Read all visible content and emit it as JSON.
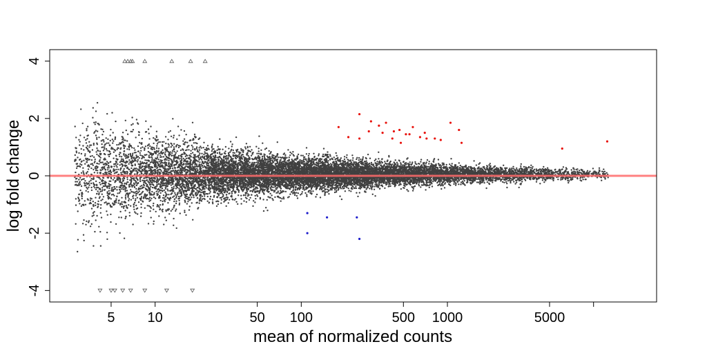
{
  "chart_data": {
    "type": "scatter",
    "title": "",
    "xlabel": "mean of normalized counts",
    "ylabel": "log fold change",
    "x_scale": "log",
    "x_ticks": [
      5,
      10,
      50,
      100,
      500,
      1000,
      5000
    ],
    "x_tick_labels": [
      "5",
      "10",
      "50",
      "100",
      "500",
      "1000",
      "5000"
    ],
    "y_ticks": [
      -4,
      -2,
      0,
      2,
      4
    ],
    "y_tick_labels": [
      "-4",
      "-2",
      "0",
      "2",
      "4"
    ],
    "xlim": [
      1.9,
      27000
    ],
    "ylim": [
      -4.4,
      4.4
    ],
    "grid": false,
    "reference_line": {
      "y": 0,
      "color": "#ff6b6b"
    },
    "colors": {
      "background_points": "#404040",
      "significant_up": "#e8120c",
      "significant_down": "#1c1ccc",
      "out_of_range": "#555555"
    },
    "series": [
      {
        "role": "significant_up",
        "points": [
          [
            250,
            2.15
          ],
          [
            300,
            1.9
          ],
          [
            340,
            1.75
          ],
          [
            380,
            1.85
          ],
          [
            430,
            1.55
          ],
          [
            470,
            1.6
          ],
          [
            520,
            1.45
          ],
          [
            580,
            1.7
          ],
          [
            650,
            1.35
          ],
          [
            720,
            1.3
          ],
          [
            820,
            1.3
          ],
          [
            1050,
            1.85
          ],
          [
            1200,
            1.6
          ],
          [
            1250,
            1.15
          ],
          [
            250,
            1.3
          ],
          [
            290,
            1.55
          ],
          [
            360,
            1.5
          ],
          [
            420,
            1.3
          ],
          [
            480,
            1.15
          ],
          [
            700,
            1.5
          ],
          [
            180,
            1.7
          ],
          [
            210,
            1.35
          ],
          [
            6100,
            0.95
          ],
          [
            12400,
            1.2
          ],
          [
            550,
            1.45
          ],
          [
            900,
            1.25
          ]
        ]
      },
      {
        "role": "significant_down",
        "points": [
          [
            110,
            -1.3
          ],
          [
            110,
            -2.0
          ],
          [
            150,
            -1.45
          ],
          [
            240,
            -1.45
          ],
          [
            250,
            -2.2
          ]
        ]
      },
      {
        "role": "out_of_range",
        "points": [
          [
            6.2,
            4
          ],
          [
            6.5,
            4
          ],
          [
            6.8,
            4
          ],
          [
            7.0,
            4
          ],
          [
            8.5,
            4
          ],
          [
            13,
            4
          ],
          [
            17.5,
            4
          ],
          [
            22,
            4
          ],
          [
            4.2,
            -4
          ],
          [
            5.0,
            -4
          ],
          [
            5.3,
            -4
          ],
          [
            6.0,
            -4
          ],
          [
            6.8,
            -4
          ],
          [
            8.5,
            -4
          ],
          [
            12,
            -4
          ],
          [
            18,
            -4
          ]
        ]
      }
    ],
    "background_cloud_points": 14000
  }
}
